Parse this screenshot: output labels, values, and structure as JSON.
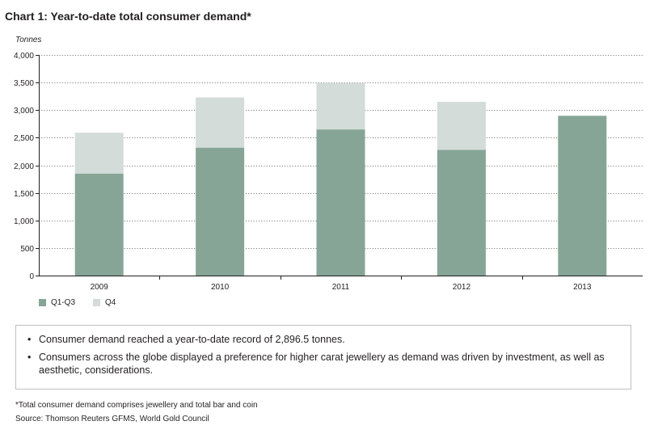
{
  "header": {
    "title": "Chart 1: Year-to-date total consumer demand*",
    "unit_label": "Tonnes"
  },
  "colors": {
    "q1q3": "#86a596",
    "q4": "#d3dcd8",
    "axis": "#231f20",
    "grid": "#555555"
  },
  "legend": [
    {
      "label": "Q1-Q3",
      "color_key": "q1q3"
    },
    {
      "label": "Q4",
      "color_key": "q4"
    }
  ],
  "notes": [
    "Consumer demand reached a year-to-date record of 2,896.5 tonnes.",
    "Consumers across the globe displayed a preference for higher carat jewellery as demand was driven by investment, as well as aesthetic, considerations."
  ],
  "footnote": "*Total consumer demand comprises jewellery and total bar and coin",
  "source": "Source: Thomson Reuters GFMS, World Gold Council",
  "chart_data": {
    "type": "bar",
    "stacked": true,
    "title": "Chart 1: Year-to-date total consumer demand*",
    "ylabel": "Tonnes",
    "xlabel": "",
    "categories": [
      "2009",
      "2010",
      "2011",
      "2012",
      "2013"
    ],
    "series": [
      {
        "name": "Q1-Q3",
        "values": [
          1850,
          2320,
          2650,
          2280,
          2896.5
        ]
      },
      {
        "name": "Q4",
        "values": [
          740,
          910,
          840,
          870,
          0
        ]
      }
    ],
    "ylim": [
      0,
      4000
    ],
    "yticks": [
      0,
      500,
      1000,
      1500,
      2000,
      2500,
      3000,
      3500,
      4000
    ],
    "ytick_labels": [
      "0",
      "500",
      "1,000",
      "1,500",
      "2,000",
      "2,500",
      "3,000",
      "3,500",
      "4,000"
    ],
    "grid": "horizontal dotted",
    "legend_position": "bottom-left"
  }
}
